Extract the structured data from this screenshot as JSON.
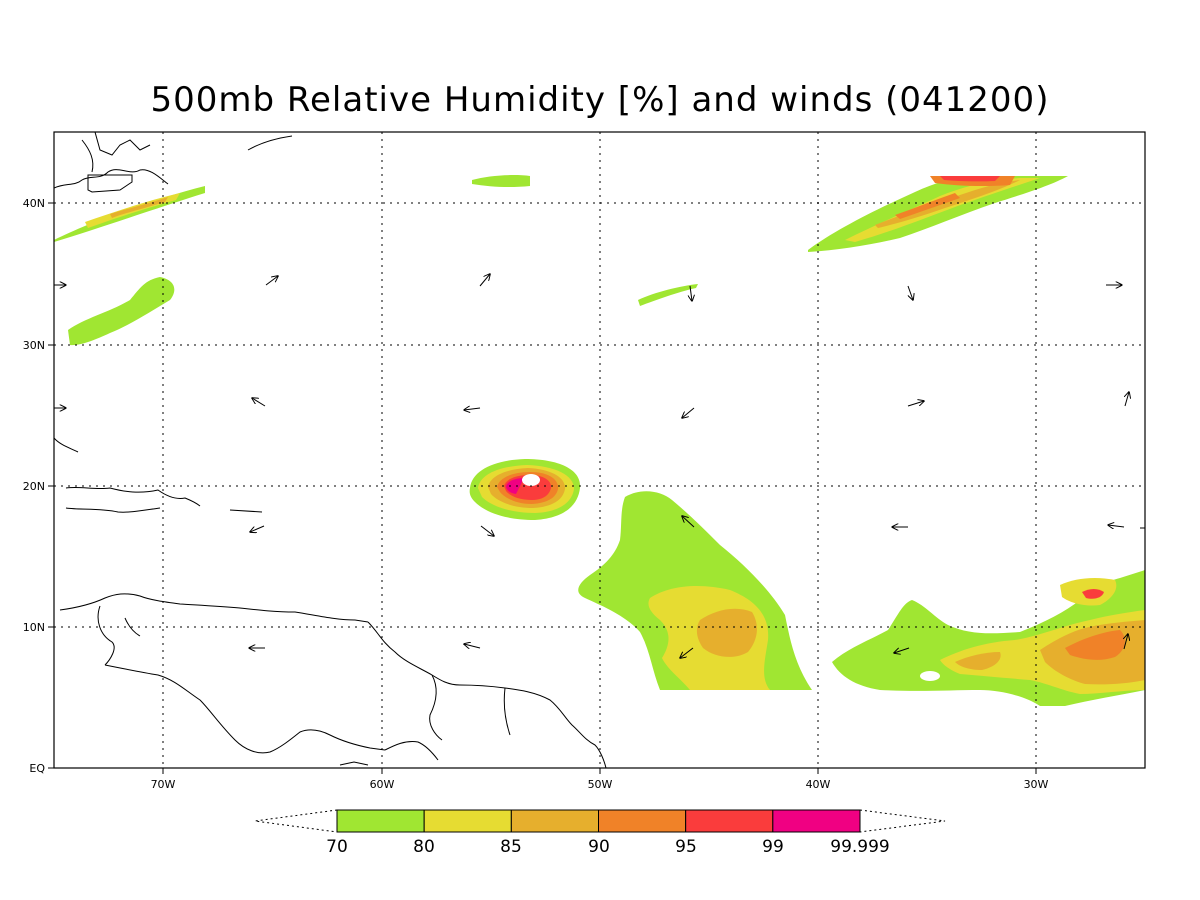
{
  "title": "500mb Relative Humidity [%] and winds (041200)",
  "map": {
    "lon_labels": [
      "70W",
      "60W",
      "50W",
      "40W",
      "30W"
    ],
    "lat_labels": [
      "40N",
      "30N",
      "20N",
      "10N",
      "EQ"
    ]
  },
  "colorbar": {
    "labels": [
      "70",
      "80",
      "85",
      "90",
      "95",
      "99",
      "99.999"
    ],
    "colors": [
      "#a0e632",
      "#e6dc32",
      "#e6af2d",
      "#f08228",
      "#fa3c3c",
      "#f00082"
    ]
  },
  "colors": {
    "rh_70_80": "#a0e632",
    "rh_80_85": "#e6dc32",
    "rh_85_90": "#e6af2d",
    "rh_90_95": "#f08228",
    "rh_95_99": "#fa3c3c",
    "rh_99_plus": "#f00082"
  }
}
